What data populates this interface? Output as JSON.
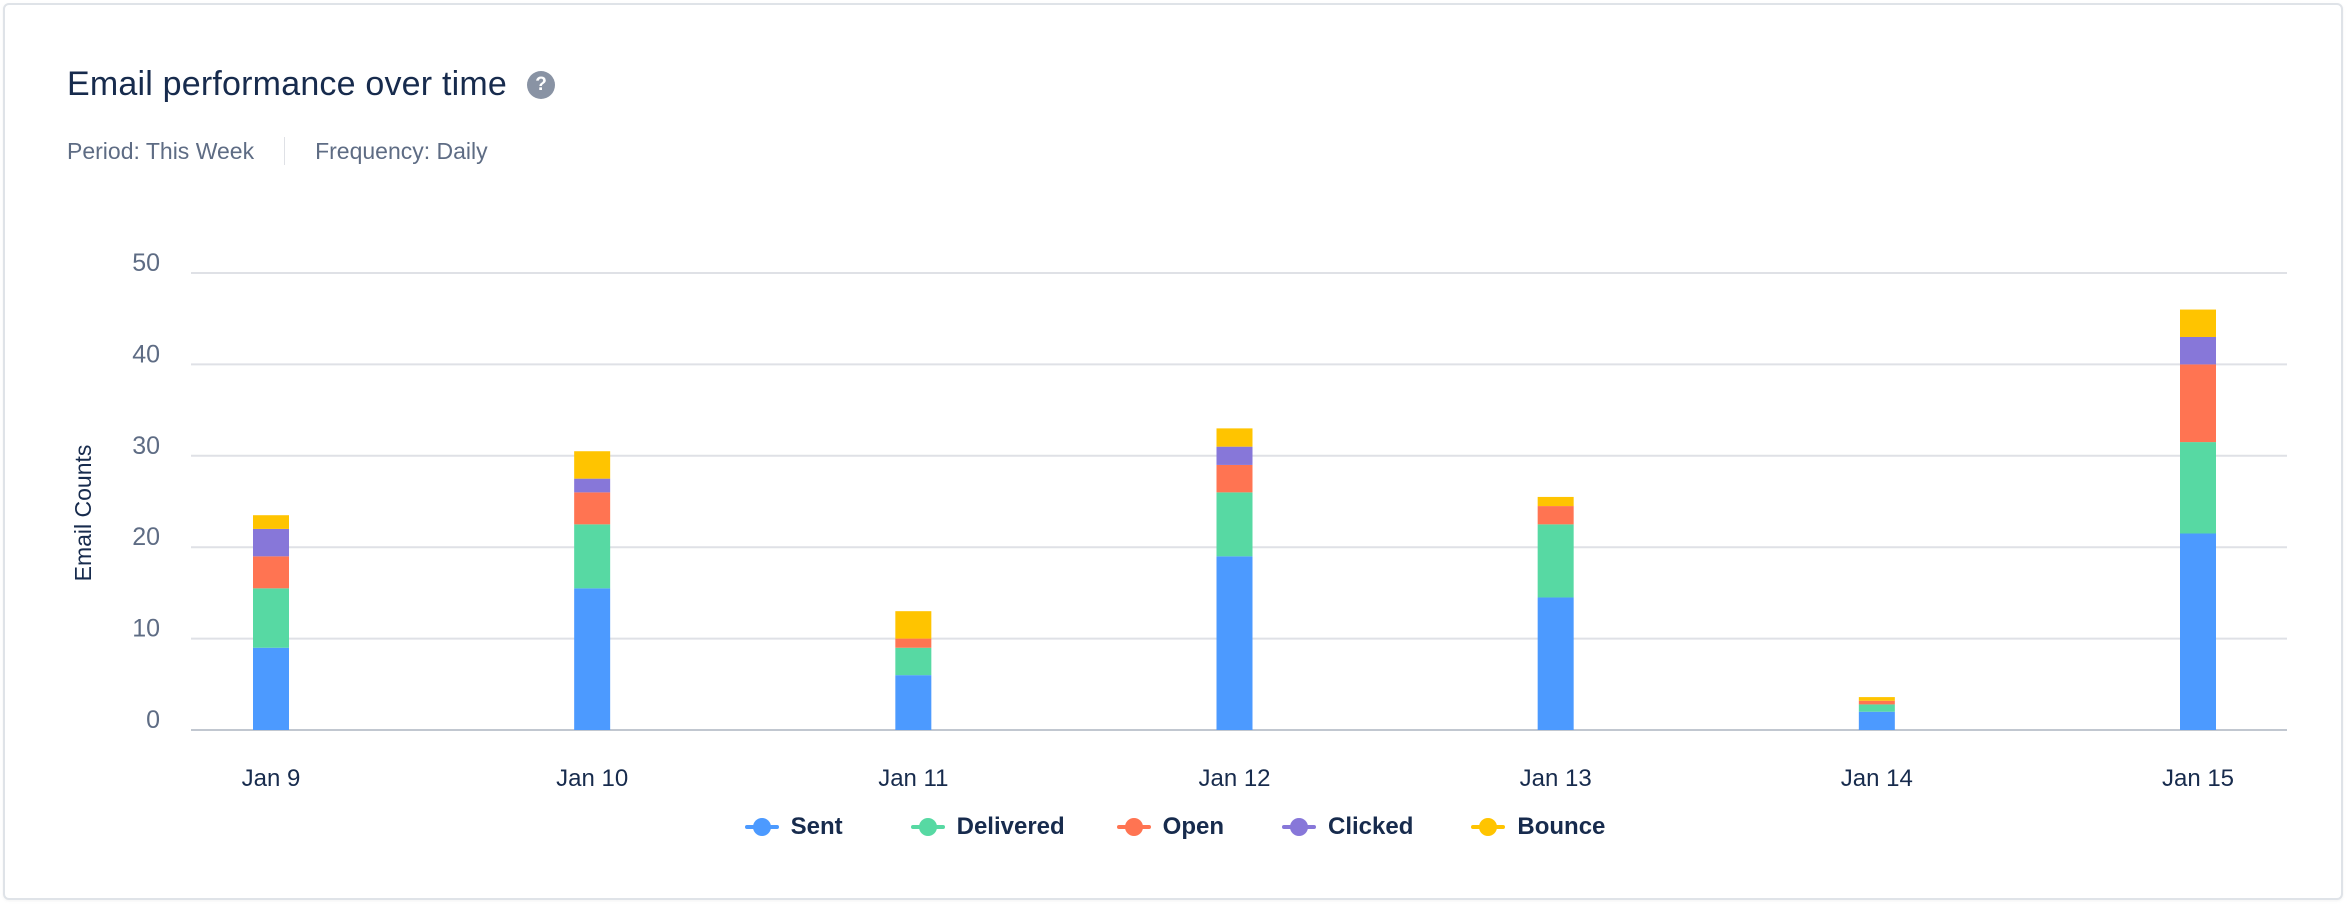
{
  "header": {
    "title": "Email performance over time",
    "help_icon": "question-circle-icon",
    "period": "Period: This Week",
    "frequency": "Frequency: Daily"
  },
  "chart_data": {
    "type": "bar",
    "stacked": true,
    "categories": [
      "Jan 9",
      "Jan 10",
      "Jan 11",
      "Jan 12",
      "Jan 13",
      "Jan 14",
      "Jan 15"
    ],
    "series": [
      {
        "name": "Sent",
        "color": "#4c9aff",
        "values": [
          9,
          15.5,
          6,
          19,
          14.5,
          2,
          21.5
        ]
      },
      {
        "name": "Delivered",
        "color": "#57d9a3",
        "values": [
          6.5,
          7,
          3,
          7,
          8,
          0.8,
          10
        ]
      },
      {
        "name": "Open",
        "color": "#ff7452",
        "values": [
          3.5,
          3.5,
          1,
          3,
          2,
          0.4,
          8.5
        ]
      },
      {
        "name": "Clicked",
        "color": "#8777d9",
        "values": [
          3,
          1.5,
          0,
          2,
          0,
          0,
          3
        ]
      },
      {
        "name": "Bounce",
        "color": "#ffc400",
        "values": [
          1.5,
          3,
          3,
          2,
          1,
          0.4,
          3
        ]
      }
    ],
    "ylabel": "Email Counts",
    "xlabel": "",
    "ylim": [
      0,
      50
    ],
    "yticks": [
      0,
      10,
      20,
      30,
      40,
      50
    ],
    "grid": true,
    "legend": "bottom"
  }
}
